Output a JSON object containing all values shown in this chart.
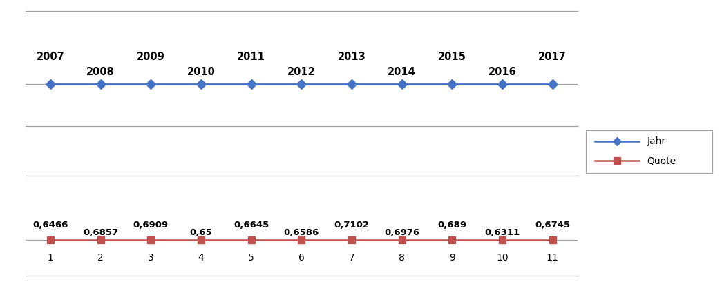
{
  "jahr_x": [
    1,
    2,
    3,
    4,
    5,
    6,
    7,
    8,
    9,
    10,
    11
  ],
  "jahr_labels": [
    "2007",
    "2008",
    "2009",
    "2010",
    "2011",
    "2012",
    "2013",
    "2014",
    "2015",
    "2016",
    "2017"
  ],
  "jahr_label_high": [
    1,
    0,
    1,
    0,
    1,
    0,
    1,
    0,
    1,
    0,
    1
  ],
  "quote_x": [
    1,
    2,
    3,
    4,
    5,
    6,
    7,
    8,
    9,
    10,
    11
  ],
  "quote_values": [
    "0,6466",
    "0,6857",
    "0,6909",
    "0,65",
    "0,6645",
    "0,6586",
    "0,7102",
    "0,6976",
    "0,689",
    "0,6311",
    "0,6745"
  ],
  "quote_label_high": [
    1,
    0,
    1,
    0,
    1,
    0,
    1,
    0,
    1,
    0,
    1
  ],
  "line_color_jahr": "#4472C4",
  "line_color_quote": "#C0504D",
  "marker_color_jahr": "#4472C4",
  "marker_color_quote": "#C0504D",
  "sep_color": "#A0A0A0",
  "legend_jahr": "Jahr",
  "legend_quote": "Quote",
  "background_color": "#FFFFFF",
  "text_color": "#000000",
  "font_size_labels": 10.5,
  "font_size_axis": 10,
  "font_size_legend": 10
}
